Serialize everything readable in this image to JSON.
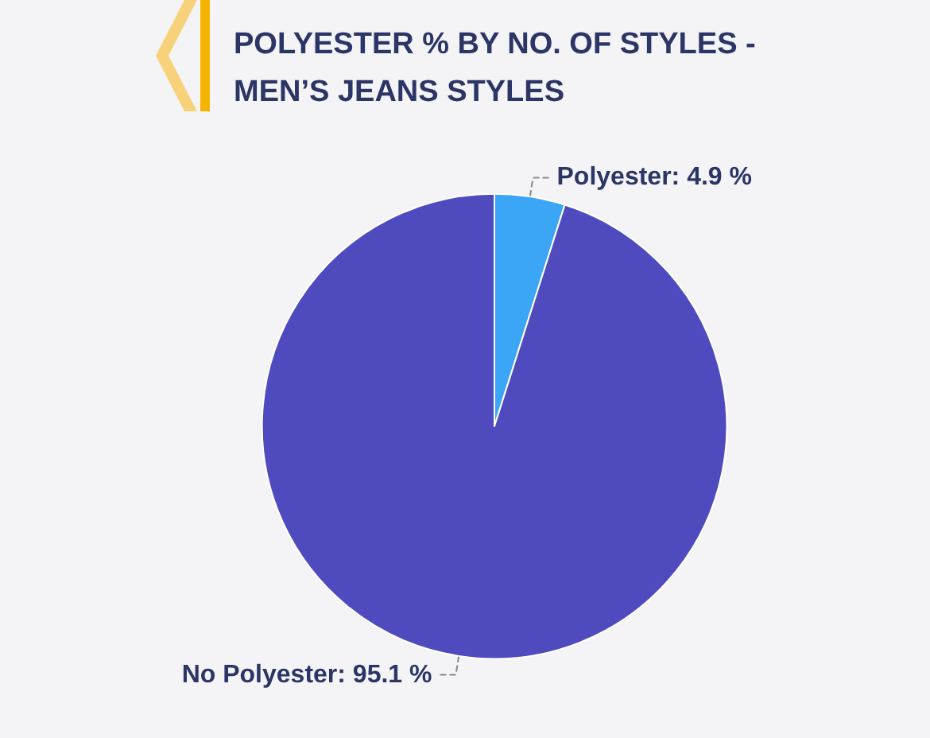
{
  "chart_data": {
    "type": "pie",
    "title": "POLYESTER % BY NO. OF STYLES - MEN’S JEANS STYLES",
    "categories": [
      "Polyester",
      "No Polyester"
    ],
    "values": [
      4.9,
      95.1
    ],
    "value_labels": [
      "4.9 %",
      "95.1 %"
    ],
    "colors": [
      "#3aa6f5",
      "#4f4bbf"
    ],
    "legend": false
  }
}
